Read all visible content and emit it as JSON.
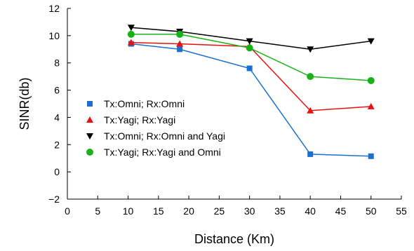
{
  "chart_data": {
    "type": "line",
    "xlabel": "Distance (Km)",
    "ylabel": "SINR(db)",
    "xlim": [
      0,
      55
    ],
    "ylim": [
      -2,
      12
    ],
    "xticks": [
      0,
      5,
      10,
      15,
      20,
      25,
      30,
      35,
      40,
      45,
      50,
      55
    ],
    "yticks": [
      -2,
      0,
      2,
      4,
      6,
      8,
      10,
      12
    ],
    "grid": false,
    "legend_position": "center-left",
    "series": [
      {
        "name": "Tx:Omni; Rx:Omni",
        "color": "#1a6fcf",
        "marker": "square",
        "x": [
          10.5,
          18.5,
          30,
          40,
          50
        ],
        "y": [
          9.4,
          9.0,
          7.6,
          1.3,
          1.15
        ]
      },
      {
        "name": "Tx:Yagi; Rx:Yagi",
        "color": "#e81010",
        "marker": "triangle-up",
        "x": [
          10.5,
          18.5,
          30,
          40,
          50
        ],
        "y": [
          9.5,
          9.4,
          9.2,
          4.5,
          4.8
        ]
      },
      {
        "name": "Tx:Omni; Rx:Omni and Yagi",
        "color": "#000000",
        "marker": "triangle-down",
        "x": [
          10.5,
          18.5,
          30,
          40,
          50
        ],
        "y": [
          10.6,
          10.3,
          9.6,
          9.0,
          9.6
        ]
      },
      {
        "name": "Tx:Yagi; Rx:Yagi and Omni",
        "color": "#18b218",
        "marker": "circle",
        "x": [
          10.5,
          18.5,
          30,
          40,
          50
        ],
        "y": [
          10.1,
          10.1,
          9.1,
          7.0,
          6.7
        ]
      }
    ]
  }
}
